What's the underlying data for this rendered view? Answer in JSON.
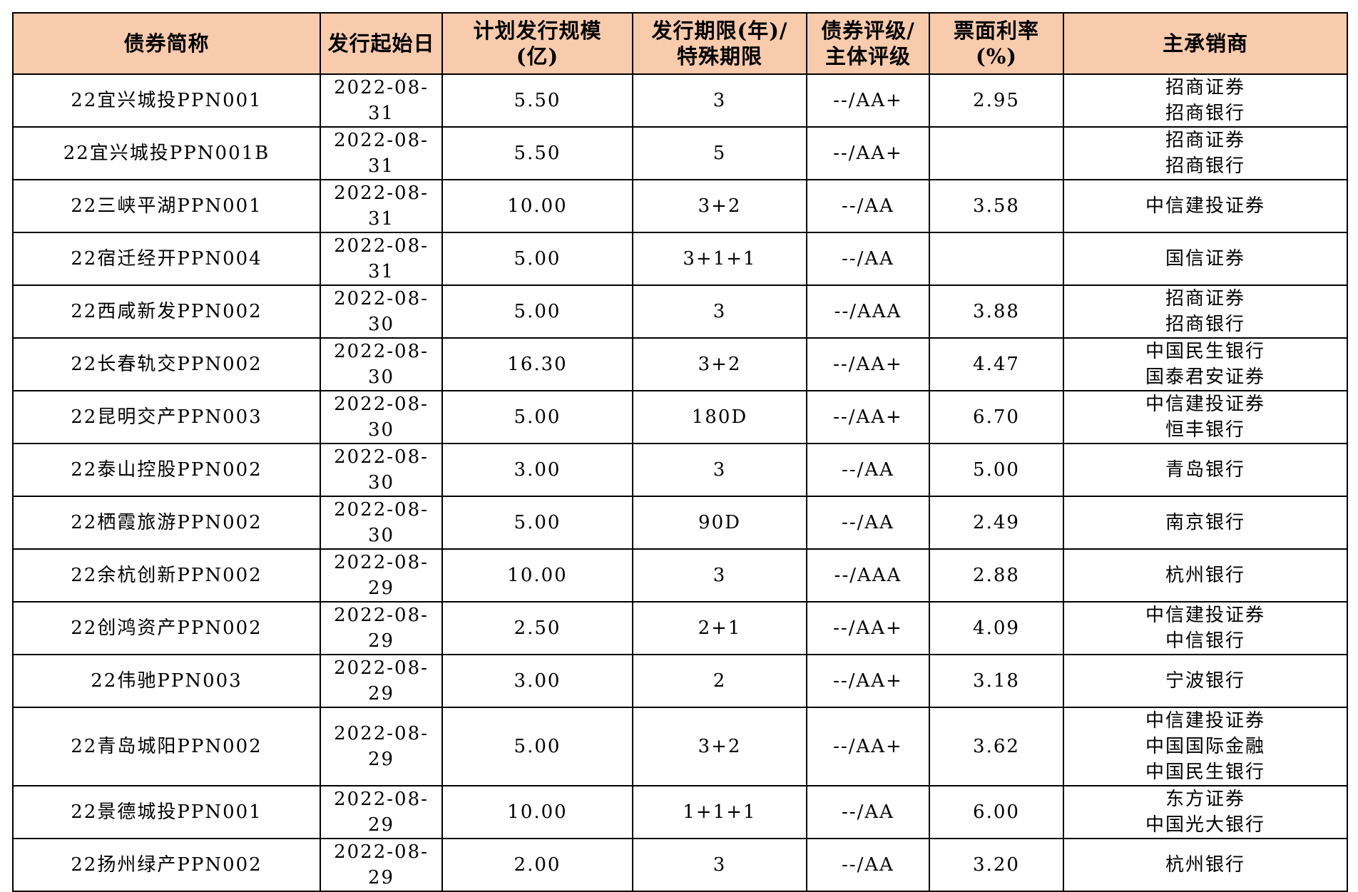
{
  "table": {
    "headers": {
      "name": "债券简称",
      "start_date": "发行起始日",
      "size_line1": "计划发行规模",
      "size_line2": "(亿)",
      "term_line1": "发行期限(年)/",
      "term_line2": "特殊期限",
      "rating_line1": "债券评级/",
      "rating_line2": "主体评级",
      "coupon_line1": "票面利率",
      "coupon_line2": "(%)",
      "underwriter": "主承销商"
    },
    "rows": [
      {
        "name": "22宜兴城投PPN001",
        "date": "2022-08-31",
        "size": "5.50",
        "term": "3",
        "rating": "--/AA+",
        "coupon": "2.95",
        "underwriters": [
          "招商证券",
          "招商银行"
        ]
      },
      {
        "name": "22宜兴城投PPN001B",
        "date": "2022-08-31",
        "size": "5.50",
        "term": "5",
        "rating": "--/AA+",
        "coupon": "",
        "underwriters": [
          "招商证券",
          "招商银行"
        ]
      },
      {
        "name": "22三峡平湖PPN001",
        "date": "2022-08-31",
        "size": "10.00",
        "term": "3+2",
        "rating": "--/AA",
        "coupon": "3.58",
        "underwriters": [
          "中信建投证券"
        ]
      },
      {
        "name": "22宿迁经开PPN004",
        "date": "2022-08-31",
        "size": "5.00",
        "term": "3+1+1",
        "rating": "--/AA",
        "coupon": "",
        "underwriters": [
          "国信证券"
        ]
      },
      {
        "name": "22西咸新发PPN002",
        "date": "2022-08-30",
        "size": "5.00",
        "term": "3",
        "rating": "--/AAA",
        "coupon": "3.88",
        "underwriters": [
          "招商证券",
          "招商银行"
        ]
      },
      {
        "name": "22长春轨交PPN002",
        "date": "2022-08-30",
        "size": "16.30",
        "term": "3+2",
        "rating": "--/AA+",
        "coupon": "4.47",
        "underwriters": [
          "中国民生银行",
          "国泰君安证券"
        ]
      },
      {
        "name": "22昆明交产PPN003",
        "date": "2022-08-30",
        "size": "5.00",
        "term": "180D",
        "rating": "--/AA+",
        "coupon": "6.70",
        "underwriters": [
          "中信建投证券",
          "恒丰银行"
        ]
      },
      {
        "name": "22泰山控股PPN002",
        "date": "2022-08-30",
        "size": "3.00",
        "term": "3",
        "rating": "--/AA",
        "coupon": "5.00",
        "underwriters": [
          "青岛银行"
        ]
      },
      {
        "name": "22栖霞旅游PPN002",
        "date": "2022-08-30",
        "size": "5.00",
        "term": "90D",
        "rating": "--/AA",
        "coupon": "2.49",
        "underwriters": [
          "南京银行"
        ]
      },
      {
        "name": "22余杭创新PPN002",
        "date": "2022-08-29",
        "size": "10.00",
        "term": "3",
        "rating": "--/AAA",
        "coupon": "2.88",
        "underwriters": [
          "杭州银行"
        ]
      },
      {
        "name": "22创鸿资产PPN002",
        "date": "2022-08-29",
        "size": "2.50",
        "term": "2+1",
        "rating": "--/AA+",
        "coupon": "4.09",
        "underwriters": [
          "中信建投证券",
          "中信银行"
        ]
      },
      {
        "name": "22伟驰PPN003",
        "date": "2022-08-29",
        "size": "3.00",
        "term": "2",
        "rating": "--/AA+",
        "coupon": "3.18",
        "underwriters": [
          "宁波银行"
        ]
      },
      {
        "name": "22青岛城阳PPN002",
        "date": "2022-08-29",
        "size": "5.00",
        "term": "3+2",
        "rating": "--/AA+",
        "coupon": "3.62",
        "underwriters": [
          "中信建投证券",
          "中国国际金融",
          "中国民生银行"
        ]
      },
      {
        "name": "22景德城投PPN001",
        "date": "2022-08-29",
        "size": "10.00",
        "term": "1+1+1",
        "rating": "--/AA",
        "coupon": "6.00",
        "underwriters": [
          "东方证券",
          "中国光大银行"
        ]
      },
      {
        "name": "22扬州绿产PPN002",
        "date": "2022-08-29",
        "size": "2.00",
        "term": "3",
        "rating": "--/AA",
        "coupon": "3.20",
        "underwriters": [
          "杭州银行"
        ]
      }
    ]
  },
  "colors": {
    "header_background": "#f8cbad",
    "border": "#000000",
    "body_background": "#ffffff"
  }
}
